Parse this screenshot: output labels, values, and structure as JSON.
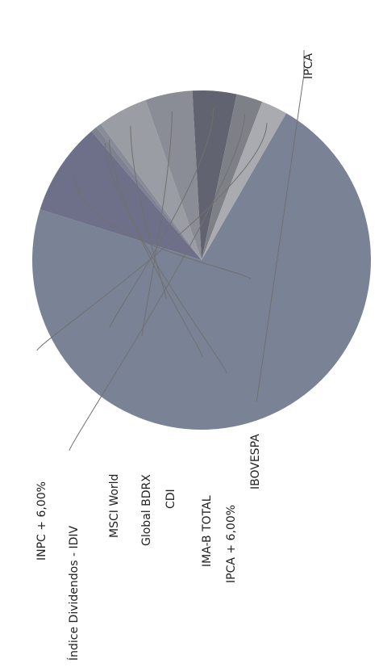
{
  "chart_data": {
    "type": "pie",
    "title": "",
    "legend": "none",
    "label_orientation": "rotated-90",
    "slices": [
      {
        "label": "IPCA",
        "value": 71.5,
        "color": "#7a8296"
      },
      {
        "label": "IBOVESPA",
        "value": 8.9,
        "color": "#6d7088"
      },
      {
        "label": "IPCA + 6,00%",
        "value": 0.6,
        "color": "#7e8290"
      },
      {
        "label": "IMA-B TOTAL",
        "value": 0.5,
        "color": "#888c98"
      },
      {
        "label": "CDI",
        "value": 4.8,
        "color": "#9a9ea4"
      },
      {
        "label": "Global BDRX",
        "value": 4.5,
        "color": "#8a8c96"
      },
      {
        "label": "MSCI World",
        "value": 4.2,
        "color": "#616470"
      },
      {
        "label": "Índice Dividendos - IDIV",
        "value": 2.5,
        "color": "#7e8088"
      },
      {
        "label": "INPC + 6,00%",
        "value": 2.5,
        "color": "#aaabb0"
      }
    ]
  }
}
